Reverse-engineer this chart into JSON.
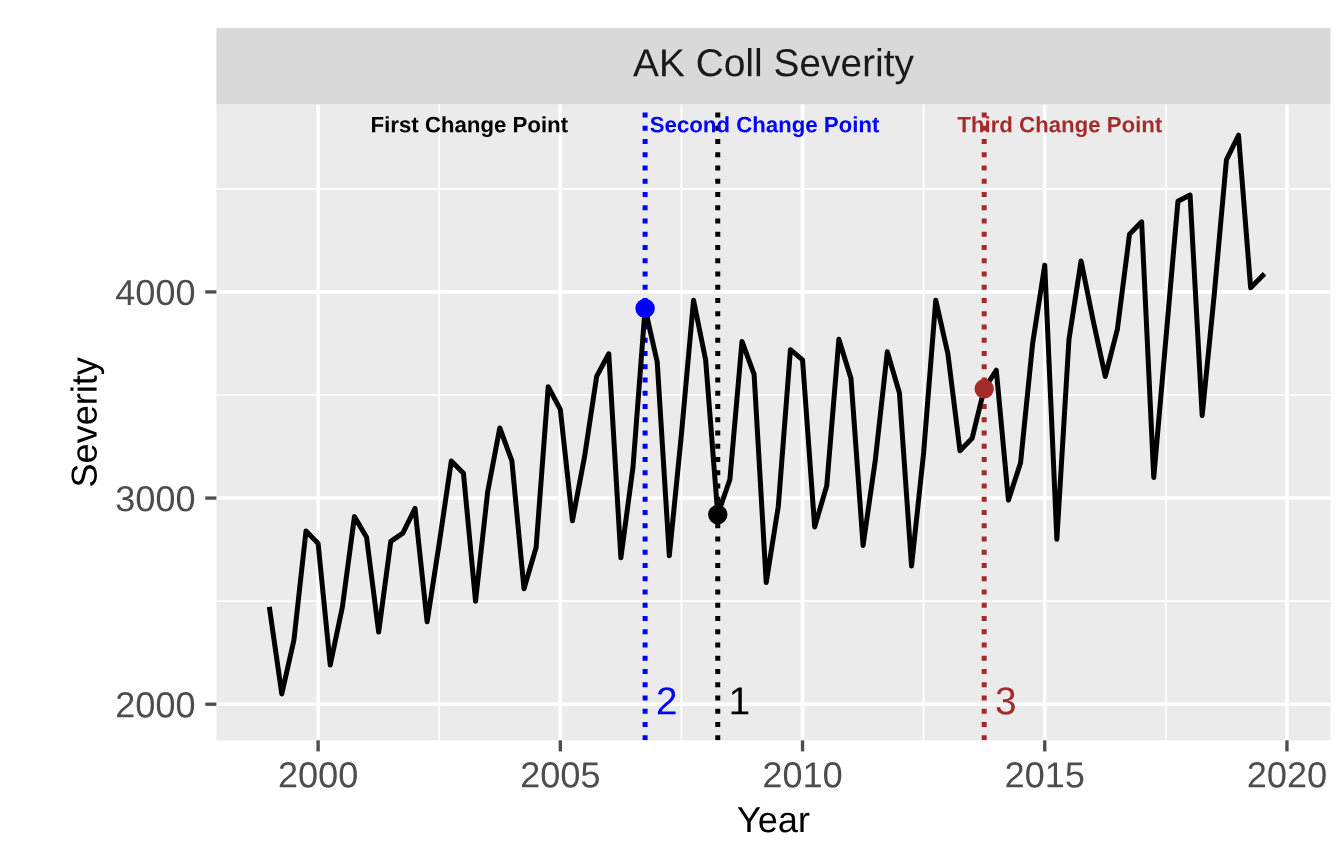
{
  "chart_data": {
    "type": "line",
    "title": "AK Coll Severity",
    "xlabel": "Year",
    "ylabel": "Severity",
    "series": [
      {
        "color": "#000000",
        "x": [
          1999.0,
          1999.25,
          1999.5,
          1999.75,
          2000.0,
          2000.25,
          2000.5,
          2000.75,
          2001.0,
          2001.25,
          2001.5,
          2001.75,
          2002.0,
          2002.25,
          2002.5,
          2002.75,
          2003.0,
          2003.25,
          2003.5,
          2003.75,
          2004.0,
          2004.25,
          2004.5,
          2004.75,
          2005.0,
          2005.25,
          2005.5,
          2005.75,
          2006.0,
          2006.25,
          2006.5,
          2006.75,
          2007.0,
          2007.25,
          2007.5,
          2007.75,
          2008.0,
          2008.25,
          2008.5,
          2008.75,
          2009.0,
          2009.25,
          2009.5,
          2009.75,
          2010.0,
          2010.25,
          2010.5,
          2010.75,
          2011.0,
          2011.25,
          2011.5,
          2011.75,
          2012.0,
          2012.25,
          2012.5,
          2012.75,
          2013.0,
          2013.25,
          2013.5,
          2013.75,
          2014.0,
          2014.25,
          2014.5,
          2014.75,
          2015.0,
          2015.25,
          2015.5,
          2015.75,
          2016.0,
          2016.25,
          2016.5,
          2016.75,
          2017.0,
          2017.25,
          2017.5,
          2017.75,
          2018.0,
          2018.25,
          2018.5,
          2018.75,
          2019.0,
          2019.25,
          2019.5
        ],
        "values": [
          2460,
          2050,
          2310,
          2840,
          2780,
          2190,
          2470,
          2910,
          2810,
          2350,
          2790,
          2830,
          2950,
          2400,
          2780,
          3180,
          3120,
          2500,
          3030,
          3340,
          3180,
          2560,
          2760,
          3540,
          3430,
          2890,
          3200,
          3590,
          3700,
          2710,
          3150,
          3920,
          3660,
          2720,
          3310,
          3960,
          3670,
          2920,
          3090,
          3760,
          3600,
          2590,
          2960,
          3720,
          3670,
          2860,
          3060,
          3770,
          3580,
          2770,
          3180,
          3710,
          3510,
          2670,
          3220,
          3960,
          3700,
          3230,
          3290,
          3530,
          3620,
          2990,
          3170,
          3750,
          4130,
          2800,
          3770,
          4150,
          3860,
          3590,
          3820,
          4280,
          4340,
          3100,
          3770,
          4440,
          4470,
          3400,
          3990,
          4640,
          4760,
          4020,
          4080
        ]
      },
      {
        "type": "scatter",
        "marker": "circle",
        "x": [
          2008.25,
          2006.75,
          2013.75
        ],
        "values": [
          2920,
          3920,
          3530
        ],
        "colors": [
          "#000000",
          "#0000ff",
          "#a52a2a"
        ]
      }
    ],
    "ref_lines": [
      {
        "axis": "x",
        "value": 2008.25,
        "label": "First Change Point",
        "color": "#000000",
        "line_style": "dotted"
      },
      {
        "axis": "x",
        "value": 2006.75,
        "label": "Second Change Point",
        "color": "#0000ff",
        "line_style": "dotted"
      },
      {
        "axis": "x",
        "value": 2013.75,
        "label": "Third Change Point",
        "color": "#a52a2a",
        "line_style": "dotted"
      }
    ],
    "annotations": [
      {
        "text": "1",
        "x": 2008.25,
        "y": 2000
      },
      {
        "text": "2",
        "x": 2006.75,
        "y": 2000
      },
      {
        "text": "3",
        "x": 2013.75,
        "y": 2000
      }
    ],
    "xlim": [
      1997.9,
      2020.9
    ],
    "xticks": [
      2000,
      2005,
      2010,
      2015,
      2020
    ],
    "ylim": [
      1825,
      4910
    ],
    "yticks": [
      2000,
      3000,
      4000
    ],
    "grid": true,
    "marker": "none",
    "line_style": "solid"
  }
}
